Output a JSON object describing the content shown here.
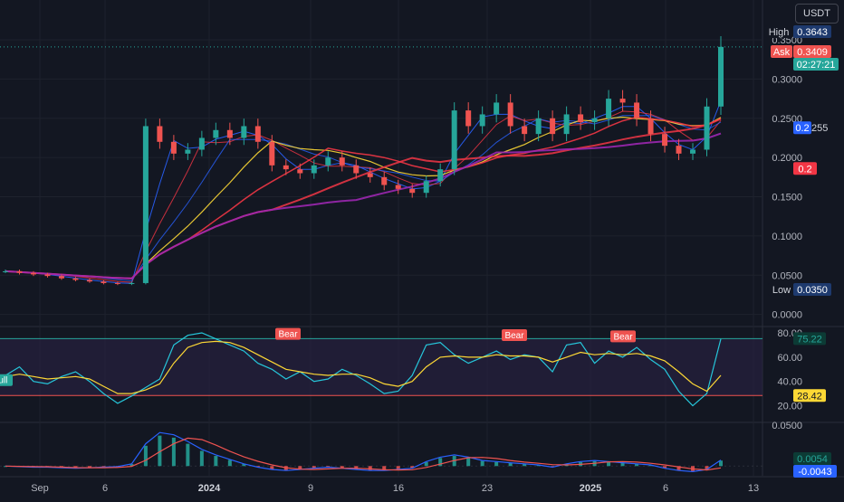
{
  "toolbar": {
    "currency": "USDT"
  },
  "chart_data": [
    {
      "type": "candlestick",
      "title": "",
      "ylim": [
        -0.005,
        0.38
      ],
      "y_ticks": [
        "0.3500",
        "0.3000",
        "0.2500",
        "0.2000",
        "0.1500",
        "0.1000",
        "0.0500",
        "0.0000"
      ],
      "x_ticks": [
        "Sep",
        "6",
        "2024",
        "9",
        "16",
        "23",
        "2025",
        "6",
        "13"
      ],
      "price_labels": {
        "high_label": "High",
        "high_value": "0.3643",
        "ask_label": "Ask",
        "ask_value": "0.3409",
        "countdown": "02:27:21",
        "low_label": "Low",
        "low_value": "0.0350",
        "ma_blue_value": "0.2",
        "ma_blue_suffix": "255",
        "ma_red_value": "0.2"
      },
      "close_series": [
        0.055,
        0.053,
        0.051,
        0.049,
        0.046,
        0.044,
        0.042,
        0.04,
        0.039,
        0.04,
        0.24,
        0.22,
        0.205,
        0.21,
        0.225,
        0.235,
        0.225,
        0.24,
        0.22,
        0.19,
        0.185,
        0.18,
        0.19,
        0.2,
        0.19,
        0.18,
        0.175,
        0.165,
        0.16,
        0.155,
        0.17,
        0.185,
        0.26,
        0.24,
        0.255,
        0.27,
        0.24,
        0.23,
        0.25,
        0.23,
        0.255,
        0.245,
        0.25,
        0.275,
        0.27,
        0.25,
        0.23,
        0.215,
        0.205,
        0.21,
        0.265,
        0.341
      ],
      "colors": {
        "up": "#26a69a",
        "down": "#ef5350",
        "ma_red": "#f23645",
        "ma_blue": "#2962ff",
        "ma_yellow": "#fdd835",
        "ma_purple": "#9c27b0"
      }
    },
    {
      "type": "line",
      "title": "",
      "ylim": [
        10,
        80
      ],
      "y_ticks": [
        "80.00",
        "60.00",
        "40.00",
        "20.00"
      ],
      "upper_band": 75.22,
      "lower_band": 28.42,
      "values_label_upper": "75.22",
      "values_label_lower": "28.42",
      "annotations": [
        "Bull",
        "Bear",
        "Bear",
        "Bear"
      ],
      "series": [
        {
          "values": [
            45,
            52,
            40,
            38,
            44,
            48,
            40,
            30,
            22,
            28,
            35,
            42,
            70,
            78,
            80,
            75,
            70,
            65,
            55,
            50,
            42,
            48,
            40,
            42,
            50,
            45,
            38,
            30,
            32,
            45,
            70,
            72,
            62,
            55,
            60,
            65,
            58,
            62,
            60,
            48,
            70,
            72,
            55,
            65,
            60,
            68,
            58,
            50,
            32,
            20,
            30,
            75
          ]
        },
        {
          "values": [
            44,
            46,
            44,
            42,
            43,
            44,
            42,
            36,
            30,
            30,
            33,
            38,
            55,
            68,
            72,
            73,
            72,
            68,
            62,
            56,
            50,
            48,
            46,
            45,
            46,
            46,
            43,
            38,
            36,
            40,
            52,
            60,
            61,
            60,
            60,
            62,
            61,
            61,
            60,
            56,
            60,
            64,
            62,
            63,
            62,
            63,
            61,
            57,
            48,
            38,
            32,
            45
          ]
        }
      ]
    },
    {
      "type": "histogram",
      "title": "",
      "ylim": [
        -0.006,
        0.035
      ],
      "y_ticks": [
        "0.0500"
      ],
      "values_label_upper": "0.0054",
      "values_label_lower": "-0.0043",
      "values": [
        0.0,
        -0.0005,
        -0.001,
        -0.001,
        -0.0015,
        -0.002,
        -0.0015,
        -0.001,
        -0.0005,
        0.002,
        0.02,
        0.03,
        0.028,
        0.022,
        0.015,
        0.01,
        0.006,
        0.002,
        -0.001,
        -0.003,
        -0.004,
        -0.003,
        -0.002,
        -0.001,
        -0.002,
        -0.003,
        -0.004,
        -0.004,
        -0.003,
        -0.002,
        0.004,
        0.008,
        0.01,
        0.008,
        0.005,
        0.004,
        0.003,
        0.002,
        0.001,
        -0.001,
        0.002,
        0.004,
        0.005,
        0.004,
        0.003,
        0.002,
        0.001,
        -0.002,
        -0.004,
        -0.005,
        -0.003,
        0.0054
      ]
    }
  ]
}
